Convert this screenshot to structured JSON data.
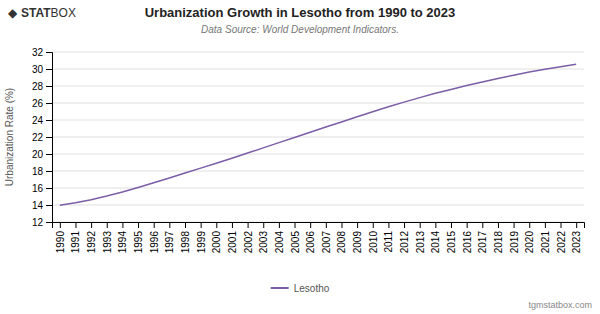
{
  "chart_data": {
    "type": "line",
    "title": "Urbanization Growth in Lesotho from 1990 to 2023",
    "subtitle": "Data Source: World Development Indicators.",
    "y_label": "Urbanization Rate (%)",
    "annotations": [
      "◆",
      "STAT",
      "BOX",
      "tgmstatbox.com"
    ],
    "x": [
      1990,
      1991,
      1992,
      1993,
      1994,
      1995,
      1996,
      1997,
      1998,
      1999,
      2000,
      2001,
      2002,
      2003,
      2004,
      2005,
      2006,
      2007,
      2008,
      2009,
      2010,
      2011,
      2012,
      2013,
      2014,
      2015,
      2016,
      2017,
      2018,
      2019,
      2020,
      2021,
      2022,
      2023
    ],
    "series": [
      {
        "name": "Lesotho",
        "color": "#7B5EA7",
        "values": [
          13.97,
          14.27,
          14.63,
          15.05,
          15.52,
          16.05,
          16.61,
          17.18,
          17.76,
          18.34,
          18.92,
          19.51,
          20.11,
          20.72,
          21.34,
          21.95,
          22.56,
          23.17,
          23.77,
          24.38,
          24.97,
          25.55,
          26.1,
          26.63,
          27.14,
          27.6,
          28.05,
          28.48,
          28.89,
          29.27,
          29.64,
          29.97,
          30.27,
          30.55
        ]
      }
    ],
    "xlim": [
      1989.5,
      2023.5
    ],
    "xticks": [
      1990,
      1991,
      1992,
      1993,
      1994,
      1995,
      1996,
      1997,
      1998,
      1999,
      2000,
      2001,
      2002,
      2003,
      2004,
      2005,
      2006,
      2007,
      2008,
      2009,
      2010,
      2011,
      2012,
      2013,
      2014,
      2015,
      2016,
      2017,
      2018,
      2019,
      2020,
      2021,
      2022,
      2023
    ],
    "ylim": [
      12,
      32
    ],
    "yticks": [
      12,
      14,
      16,
      18,
      20,
      22,
      24,
      26,
      28,
      30,
      32
    ],
    "grid": "y",
    "legend": "bottom"
  }
}
